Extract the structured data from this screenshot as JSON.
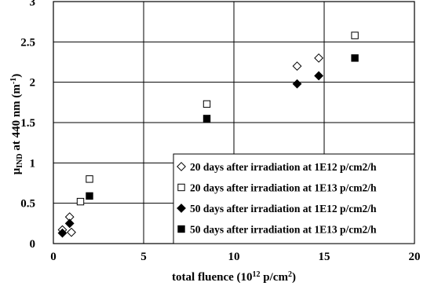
{
  "chart_data": {
    "type": "scatter",
    "title": "",
    "xlabel": "total fluence (10¹² p/cm²)",
    "ylabel": "μIND at 440 nm (m⁻¹)",
    "xlim": [
      0,
      20
    ],
    "ylim": [
      0,
      3
    ],
    "xticks": [
      "0",
      "5",
      "10",
      "15",
      "20"
    ],
    "yticks": [
      "0",
      "0.5",
      "1",
      "1.5",
      "2",
      "2.5",
      "3"
    ],
    "grid": true,
    "legend_position": "bottom-right",
    "series": [
      {
        "name": "20 days after irradiation at 1E12 p/cm2/h",
        "marker": "diamond-open",
        "points": [
          [
            0.5,
            0.17
          ],
          [
            0.9,
            0.33
          ],
          [
            1.0,
            0.14
          ],
          [
            13.5,
            2.2
          ],
          [
            14.7,
            2.3
          ]
        ]
      },
      {
        "name": "20 days after irradiation at 1E13 p/cm2/h",
        "marker": "square-open",
        "points": [
          [
            1.5,
            0.52
          ],
          [
            2.0,
            0.8
          ],
          [
            8.5,
            1.73
          ],
          [
            16.7,
            2.58
          ]
        ]
      },
      {
        "name": "50 days after irradiation at 1E12 p/cm2/h",
        "marker": "diamond-filled",
        "points": [
          [
            0.5,
            0.13
          ],
          [
            0.9,
            0.25
          ],
          [
            13.5,
            1.98
          ],
          [
            14.7,
            2.08
          ]
        ]
      },
      {
        "name": "50 days after irradiation at 1E13 p/cm2/h",
        "marker": "square-filled",
        "points": [
          [
            2.0,
            0.59
          ],
          [
            8.5,
            1.55
          ],
          [
            16.7,
            2.3
          ]
        ]
      }
    ]
  }
}
